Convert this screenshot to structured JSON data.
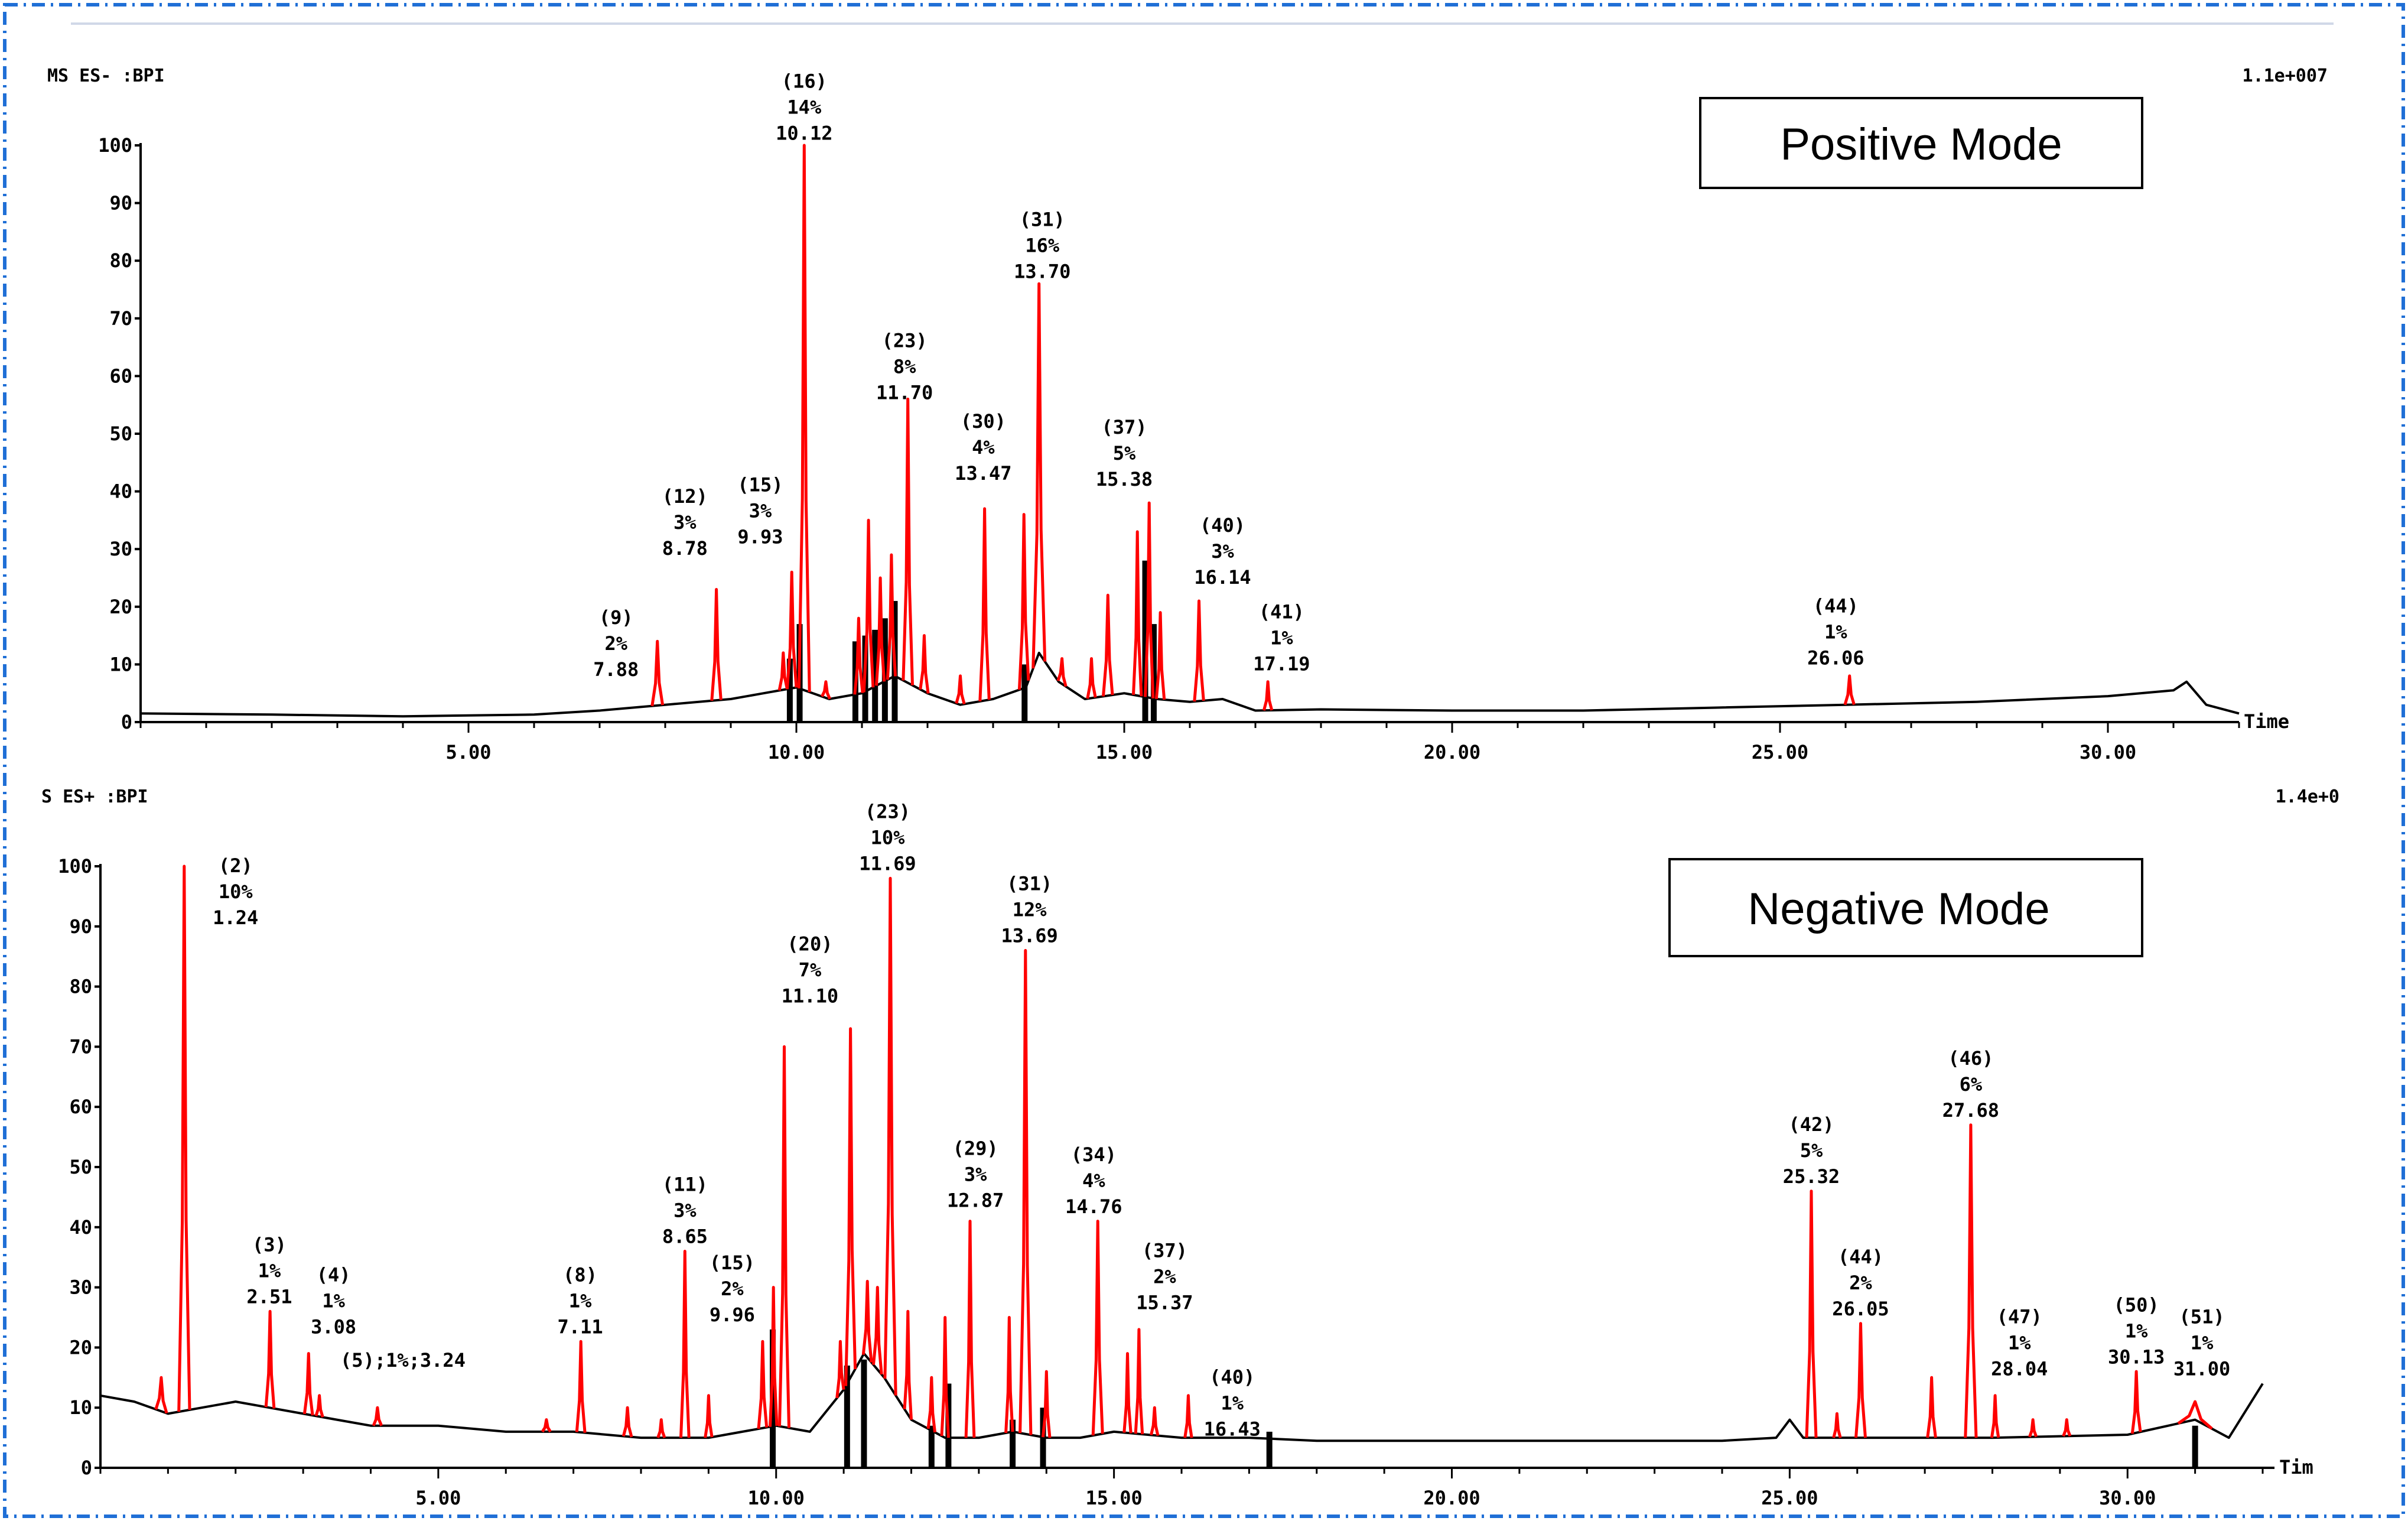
{
  "figure": {
    "colors": {
      "peak": "#ff0000",
      "baseline": "#000000",
      "frame": "#1f6fd6"
    }
  },
  "chart_data": [
    {
      "type": "line",
      "title": "Positive Mode",
      "header_left": "MS ES- :BPI",
      "header_right": "1.1e+007",
      "xlabel": "Time",
      "ylabel": "",
      "xlim": [
        0,
        32
      ],
      "ylim": [
        0,
        100
      ],
      "x_ticks": [
        5,
        10,
        15,
        20,
        25,
        30
      ],
      "x_tick_labels": [
        "5.00",
        "10.00",
        "15.00",
        "20.00",
        "25.00",
        "30.00"
      ],
      "y_ticks": [
        0,
        10,
        20,
        30,
        40,
        50,
        60,
        70,
        80,
        90,
        100
      ],
      "baseline": [
        [
          0,
          1.5
        ],
        [
          2,
          1.3
        ],
        [
          4,
          1
        ],
        [
          6,
          1.3
        ],
        [
          7,
          2
        ],
        [
          8,
          3
        ],
        [
          9,
          4
        ],
        [
          9.5,
          5
        ],
        [
          10,
          6
        ],
        [
          10.5,
          4
        ],
        [
          11,
          5
        ],
        [
          11.5,
          8
        ],
        [
          12,
          5
        ],
        [
          12.5,
          3
        ],
        [
          13,
          4
        ],
        [
          13.5,
          6
        ],
        [
          13.7,
          12
        ],
        [
          14,
          7
        ],
        [
          14.4,
          4
        ],
        [
          15,
          5
        ],
        [
          15.5,
          4
        ],
        [
          16,
          3.5
        ],
        [
          16.5,
          4
        ],
        [
          17,
          2
        ],
        [
          18,
          2.2
        ],
        [
          20,
          2
        ],
        [
          22,
          2
        ],
        [
          24,
          2.5
        ],
        [
          26,
          3
        ],
        [
          28,
          3.5
        ],
        [
          30,
          4.5
        ],
        [
          31,
          5.5
        ],
        [
          31.2,
          7
        ],
        [
          31.5,
          3
        ],
        [
          32,
          1.5
        ]
      ],
      "peaks": [
        {
          "rt": 7.88,
          "h": 14,
          "w": 0.08
        },
        {
          "rt": 8.78,
          "h": 23,
          "w": 0.07
        },
        {
          "rt": 9.8,
          "h": 12,
          "w": 0.06
        },
        {
          "rt": 9.93,
          "h": 26,
          "w": 0.07
        },
        {
          "rt": 10.12,
          "h": 100,
          "w": 0.08
        },
        {
          "rt": 10.45,
          "h": 7,
          "w": 0.06
        },
        {
          "rt": 10.95,
          "h": 18,
          "w": 0.06
        },
        {
          "rt": 11.1,
          "h": 35,
          "w": 0.07
        },
        {
          "rt": 11.28,
          "h": 25,
          "w": 0.06
        },
        {
          "rt": 11.45,
          "h": 29,
          "w": 0.06
        },
        {
          "rt": 11.7,
          "h": 56,
          "w": 0.07
        },
        {
          "rt": 11.95,
          "h": 15,
          "w": 0.06
        },
        {
          "rt": 12.5,
          "h": 8,
          "w": 0.06
        },
        {
          "rt": 12.87,
          "h": 37,
          "w": 0.07
        },
        {
          "rt": 13.47,
          "h": 36,
          "w": 0.07
        },
        {
          "rt": 13.7,
          "h": 76,
          "w": 0.09
        },
        {
          "rt": 14.05,
          "h": 11,
          "w": 0.06
        },
        {
          "rt": 14.5,
          "h": 11,
          "w": 0.06
        },
        {
          "rt": 14.75,
          "h": 22,
          "w": 0.07
        },
        {
          "rt": 15.2,
          "h": 33,
          "w": 0.06
        },
        {
          "rt": 15.38,
          "h": 38,
          "w": 0.06
        },
        {
          "rt": 15.55,
          "h": 19,
          "w": 0.06
        },
        {
          "rt": 16.14,
          "h": 21,
          "w": 0.07
        },
        {
          "rt": 17.19,
          "h": 7,
          "w": 0.06
        },
        {
          "rt": 26.06,
          "h": 8,
          "w": 0.07
        }
      ],
      "bars": [
        {
          "rt": 9.9,
          "h": 11
        },
        {
          "rt": 10.05,
          "h": 17
        },
        {
          "rt": 10.9,
          "h": 14
        },
        {
          "rt": 11.05,
          "h": 15
        },
        {
          "rt": 11.2,
          "h": 16
        },
        {
          "rt": 11.35,
          "h": 18
        },
        {
          "rt": 11.5,
          "h": 21
        },
        {
          "rt": 13.48,
          "h": 10
        },
        {
          "rt": 15.32,
          "h": 28
        },
        {
          "rt": 15.45,
          "h": 17
        }
      ],
      "annotations": [
        {
          "id": "(9)",
          "pct": "2%",
          "rt": "7.88",
          "x": 7.25,
          "y": 17
        },
        {
          "id": "(12)",
          "pct": "3%",
          "rt": "8.78",
          "x": 8.3,
          "y": 38
        },
        {
          "id": "(15)",
          "pct": "3%",
          "rt": "9.93",
          "x": 9.45,
          "y": 40
        },
        {
          "id": "(16)",
          "pct": "14%",
          "rt": "10.12",
          "x": 10.12,
          "y": 110
        },
        {
          "id": "(23)",
          "pct": "8%",
          "rt": "11.70",
          "x": 11.65,
          "y": 65
        },
        {
          "id": "(30)",
          "pct": "4%",
          "rt": "13.47",
          "x": 12.85,
          "y": 51
        },
        {
          "id": "(31)",
          "pct": "16%",
          "rt": "13.70",
          "x": 13.75,
          "y": 86
        },
        {
          "id": "(37)",
          "pct": "5%",
          "rt": "15.38",
          "x": 15.0,
          "y": 50
        },
        {
          "id": "(40)",
          "pct": "3%",
          "rt": "16.14",
          "x": 16.5,
          "y": 33
        },
        {
          "id": "(41)",
          "pct": "1%",
          "rt": "17.19",
          "x": 17.4,
          "y": 18
        },
        {
          "id": "(44)",
          "pct": "1%",
          "rt": "26.06",
          "x": 25.85,
          "y": 19
        }
      ]
    },
    {
      "type": "line",
      "title": "Negative Mode",
      "header_left": "S ES+ :BPI",
      "header_right": "1.4e+0",
      "xlabel": "Tim",
      "ylabel": "",
      "xlim": [
        0,
        32
      ],
      "ylim": [
        0,
        100
      ],
      "x_ticks": [
        5,
        10,
        15,
        20,
        25,
        30
      ],
      "x_tick_labels": [
        "5.00",
        "10.00",
        "15.00",
        "20.00",
        "25.00",
        "30.00"
      ],
      "y_ticks": [
        0,
        10,
        20,
        30,
        40,
        50,
        60,
        70,
        80,
        90,
        100
      ],
      "baseline": [
        [
          0,
          12
        ],
        [
          0.5,
          11
        ],
        [
          1,
          9
        ],
        [
          1.5,
          10
        ],
        [
          2,
          11
        ],
        [
          2.5,
          10
        ],
        [
          3,
          9
        ],
        [
          3.5,
          8
        ],
        [
          4,
          7
        ],
        [
          5,
          7
        ],
        [
          6,
          6
        ],
        [
          7,
          6
        ],
        [
          8,
          5
        ],
        [
          9,
          5
        ],
        [
          9.5,
          6
        ],
        [
          10,
          7
        ],
        [
          10.5,
          6
        ],
        [
          11,
          13
        ],
        [
          11.3,
          19
        ],
        [
          11.6,
          15
        ],
        [
          12,
          8
        ],
        [
          12.5,
          5
        ],
        [
          13,
          5
        ],
        [
          13.5,
          6
        ],
        [
          14,
          5
        ],
        [
          14.5,
          5
        ],
        [
          15,
          6
        ],
        [
          16,
          5
        ],
        [
          17,
          5
        ],
        [
          18,
          4.5
        ],
        [
          20,
          4.5
        ],
        [
          22,
          4.5
        ],
        [
          24,
          4.5
        ],
        [
          24.8,
          5
        ],
        [
          25,
          8
        ],
        [
          25.2,
          5
        ],
        [
          26,
          5
        ],
        [
          28,
          5
        ],
        [
          30,
          5.5
        ],
        [
          31,
          8
        ],
        [
          31.5,
          5
        ],
        [
          32,
          14
        ]
      ],
      "peaks": [
        {
          "rt": 0.9,
          "h": 15,
          "w": 0.08
        },
        {
          "rt": 1.24,
          "h": 100,
          "w": 0.08
        },
        {
          "rt": 2.51,
          "h": 26,
          "w": 0.06
        },
        {
          "rt": 3.08,
          "h": 19,
          "w": 0.06
        },
        {
          "rt": 3.24,
          "h": 12,
          "w": 0.05
        },
        {
          "rt": 4.1,
          "h": 10,
          "w": 0.06
        },
        {
          "rt": 6.6,
          "h": 8,
          "w": 0.06
        },
        {
          "rt": 7.11,
          "h": 21,
          "w": 0.06
        },
        {
          "rt": 7.8,
          "h": 10,
          "w": 0.06
        },
        {
          "rt": 8.3,
          "h": 8,
          "w": 0.05
        },
        {
          "rt": 8.65,
          "h": 36,
          "w": 0.06
        },
        {
          "rt": 9.0,
          "h": 12,
          "w": 0.05
        },
        {
          "rt": 9.8,
          "h": 21,
          "w": 0.06
        },
        {
          "rt": 9.96,
          "h": 30,
          "w": 0.05
        },
        {
          "rt": 10.12,
          "h": 70,
          "w": 0.07
        },
        {
          "rt": 10.95,
          "h": 21,
          "w": 0.05
        },
        {
          "rt": 11.1,
          "h": 73,
          "w": 0.07
        },
        {
          "rt": 11.35,
          "h": 31,
          "w": 0.06
        },
        {
          "rt": 11.5,
          "h": 30,
          "w": 0.06
        },
        {
          "rt": 11.69,
          "h": 98,
          "w": 0.08
        },
        {
          "rt": 11.95,
          "h": 26,
          "w": 0.05
        },
        {
          "rt": 12.3,
          "h": 15,
          "w": 0.05
        },
        {
          "rt": 12.5,
          "h": 25,
          "w": 0.05
        },
        {
          "rt": 12.87,
          "h": 41,
          "w": 0.06
        },
        {
          "rt": 13.45,
          "h": 25,
          "w": 0.05
        },
        {
          "rt": 13.69,
          "h": 86,
          "w": 0.08
        },
        {
          "rt": 14.0,
          "h": 16,
          "w": 0.05
        },
        {
          "rt": 14.76,
          "h": 41,
          "w": 0.07
        },
        {
          "rt": 15.2,
          "h": 19,
          "w": 0.05
        },
        {
          "rt": 15.37,
          "h": 23,
          "w": 0.05
        },
        {
          "rt": 15.6,
          "h": 10,
          "w": 0.05
        },
        {
          "rt": 16.1,
          "h": 12,
          "w": 0.05
        },
        {
          "rt": 25.32,
          "h": 46,
          "w": 0.07
        },
        {
          "rt": 25.7,
          "h": 9,
          "w": 0.05
        },
        {
          "rt": 26.05,
          "h": 24,
          "w": 0.07
        },
        {
          "rt": 27.1,
          "h": 15,
          "w": 0.06
        },
        {
          "rt": 27.68,
          "h": 57,
          "w": 0.08
        },
        {
          "rt": 28.04,
          "h": 12,
          "w": 0.05
        },
        {
          "rt": 28.6,
          "h": 8,
          "w": 0.05
        },
        {
          "rt": 29.1,
          "h": 8,
          "w": 0.05
        },
        {
          "rt": 30.13,
          "h": 16,
          "w": 0.06
        },
        {
          "rt": 31.0,
          "h": 11,
          "w": 0.25
        }
      ],
      "bars": [
        {
          "rt": 9.95,
          "h": 23
        },
        {
          "rt": 11.05,
          "h": 17
        },
        {
          "rt": 11.3,
          "h": 18
        },
        {
          "rt": 12.3,
          "h": 7
        },
        {
          "rt": 12.55,
          "h": 14
        },
        {
          "rt": 13.5,
          "h": 8
        },
        {
          "rt": 13.95,
          "h": 10
        },
        {
          "rt": 17.3,
          "h": 6
        },
        {
          "rt": 31.0,
          "h": 7
        }
      ],
      "annotations": [
        {
          "id": "(2)",
          "pct": "10%",
          "rt": "1.24",
          "x": 2.0,
          "y": 99
        },
        {
          "id": "(3)",
          "pct": "1%",
          "rt": "2.51",
          "x": 2.5,
          "y": 36
        },
        {
          "id": "(4)",
          "pct": "1%",
          "rt": "3.08",
          "x": 3.45,
          "y": 31
        },
        {
          "id": "(15)",
          "pct": "2%",
          "rt": "9.96",
          "x": 9.35,
          "y": 33
        },
        {
          "id": "(8)",
          "pct": "1%",
          "rt": "7.11",
          "x": 7.1,
          "y": 31
        },
        {
          "id": "(11)",
          "pct": "3%",
          "rt": "8.65",
          "x": 8.65,
          "y": 46
        },
        {
          "id": "(20)",
          "pct": "7%",
          "rt": "11.10",
          "x": 10.5,
          "y": 86
        },
        {
          "id": "(23)",
          "pct": "10%",
          "rt": "11.69",
          "x": 11.65,
          "y": 108
        },
        {
          "id": "(29)",
          "pct": "3%",
          "rt": "12.87",
          "x": 12.95,
          "y": 52
        },
        {
          "id": "(31)",
          "pct": "12%",
          "rt": "13.69",
          "x": 13.75,
          "y": 96
        },
        {
          "id": "(34)",
          "pct": "4%",
          "rt": "14.76",
          "x": 14.7,
          "y": 51
        },
        {
          "id": "(37)",
          "pct": "2%",
          "rt": "15.37",
          "x": 15.75,
          "y": 35
        },
        {
          "id": "(40)",
          "pct": "1%",
          "rt": "16.43",
          "x": 16.75,
          "y": 14
        },
        {
          "id": "(42)",
          "pct": "5%",
          "rt": "25.32",
          "x": 25.32,
          "y": 56
        },
        {
          "id": "(44)",
          "pct": "2%",
          "rt": "26.05",
          "x": 26.05,
          "y": 34
        },
        {
          "id": "(46)",
          "pct": "6%",
          "rt": "27.68",
          "x": 27.68,
          "y": 67
        },
        {
          "id": "(47)",
          "pct": "1%",
          "rt": "28.04",
          "x": 28.4,
          "y": 24
        },
        {
          "id": "(50)",
          "pct": "1%",
          "rt": "30.13",
          "x": 30.13,
          "y": 26
        },
        {
          "id": "(51)",
          "pct": "1%",
          "rt": "31.00",
          "x": 31.1,
          "y": 24
        }
      ],
      "inline_annotation": "(5);1%;3.24"
    }
  ]
}
